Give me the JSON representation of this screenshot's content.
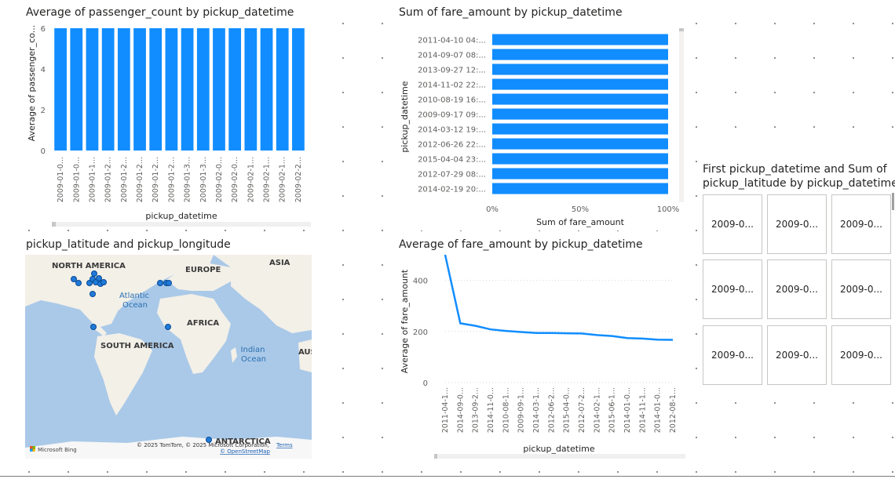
{
  "chart_data": [
    {
      "type": "bar",
      "title": "Average of passenger_count by pickup_datetime",
      "xlabel": "pickup_datetime",
      "ylabel": "Average of passenger_co...",
      "categories": [
        "2009-01-0...",
        "2009-01-0...",
        "2009-01-1...",
        "2009-01-2...",
        "2009-01-2...",
        "2009-01-2...",
        "2009-01-2...",
        "2009-01-2...",
        "2009-01-3...",
        "2009-01-3...",
        "2009-02-0...",
        "2009-02-0...",
        "2009-02-1...",
        "2009-02-1...",
        "2009-02-1...",
        "2009-02-2..."
      ],
      "values": [
        6,
        6,
        6,
        6,
        6,
        6,
        6,
        6,
        6,
        6,
        6,
        6,
        6,
        6,
        6,
        6
      ],
      "ylim": [
        0,
        6
      ],
      "yticks": [
        "0",
        "2",
        "4",
        "6"
      ],
      "color": "#118DFF"
    },
    {
      "type": "bar",
      "orientation": "horizontal",
      "title": "Sum of fare_amount by pickup_datetime",
      "xlabel": "Sum of fare_amount",
      "ylabel": "pickup_datetime",
      "categories": [
        "2011-04-10 04:...",
        "2014-09-07 08:...",
        "2013-09-27 12:...",
        "2014-11-02 22:...",
        "2010-08-19 16:...",
        "2009-09-17 09:...",
        "2014-03-12 19:...",
        "2012-06-26 22:...",
        "2015-04-04 23:...",
        "2012-07-29 08:...",
        "2014-02-19 20:..."
      ],
      "values": [
        100,
        100,
        100,
        100,
        100,
        100,
        100,
        100,
        100,
        100,
        100
      ],
      "xticks": [
        "0%",
        "50%",
        "100%"
      ],
      "xlim": [
        0,
        100
      ],
      "color": "#118DFF"
    },
    {
      "type": "line",
      "title": "Average of fare_amount by pickup_datetime",
      "xlabel": "pickup_datetime",
      "ylabel": "Average of fare_amount",
      "categories": [
        "2011-04-1...",
        "2014-09-0...",
        "2013-09-2...",
        "2014-11-0...",
        "2010-08-1...",
        "2009-09-1...",
        "2014-03-1...",
        "2012-06-2...",
        "2015-04-0...",
        "2012-07-2...",
        "2014-02-1...",
        "2015-06-1...",
        "2014-01-0...",
        "2014-11-1...",
        "2014-01-0...",
        "2012-08-1..."
      ],
      "values": [
        500,
        232,
        222,
        208,
        202,
        198,
        194,
        194,
        193,
        192,
        186,
        182,
        174,
        172,
        168,
        167
      ],
      "ylim": [
        0,
        500
      ],
      "yticks": [
        "0",
        "200",
        "400"
      ],
      "color": "#118DFF"
    }
  ],
  "map": {
    "title": "pickup_latitude and pickup_longitude",
    "labels": {
      "north_america": "NORTH AMERICA",
      "europe": "EUROPE",
      "asia": "ASIA",
      "atlantic_1": "Atlantic",
      "atlantic_2": "Ocean",
      "africa": "AFRICA",
      "south_america": "SOUTH AMERICA",
      "indian_1": "Indian",
      "indian_2": "Ocean",
      "australia": "AUS",
      "antarctica": "ANTARCTICA"
    },
    "logo": "Microsoft Bing",
    "copyright": "© 2025 TomTom, © 2025 Microsoft Corporation,",
    "terms": "Terms",
    "osm": "© OpenStreetMap"
  },
  "cards": {
    "title_line1": "First pickup_datetime and Sum of",
    "title_line2": "pickup_latitude by pickup_datetime",
    "tiles": [
      "2009-0...",
      "2009-0...",
      "2009-0...",
      "2009-0...",
      "2009-0...",
      "2009-0...",
      "2009-0...",
      "2009-0...",
      "2009-0..."
    ]
  }
}
